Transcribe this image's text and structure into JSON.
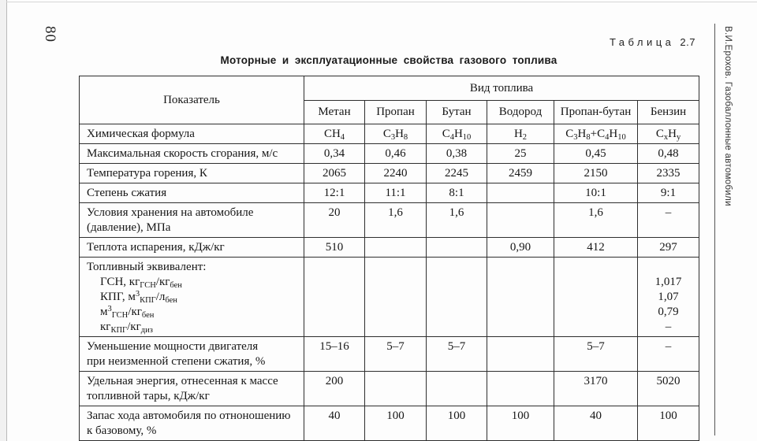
{
  "page": {
    "number": "80",
    "margin_title": "В.И.Ерохов. Газобаллонные автомобили",
    "table_ref": {
      "word": "Таблица",
      "number": "2.7"
    },
    "title": "Моторные и эксплуатационные свойства газового топлива"
  },
  "table": {
    "header": {
      "indicator": "Показатель",
      "group": "Вид топлива",
      "fuels": [
        "Метан",
        "Пропан",
        "Бутан",
        "Водород",
        "Пропан-бутан",
        "Бензин"
      ]
    },
    "rows": [
      {
        "label": [
          "Химическая формула"
        ],
        "values": [
          "CH~4~",
          "C~3~H~8~",
          "C~4~H~10~",
          "H~2~",
          "C~3~H~8~+C~4~H~10~",
          "C~x~H~y~"
        ]
      },
      {
        "label": [
          "Максимальная скорость сгорания, м/с"
        ],
        "values": [
          "0,34",
          "0,46",
          "0,38",
          "25",
          "0,45",
          "0,48"
        ]
      },
      {
        "label": [
          "Температура горения, К"
        ],
        "values": [
          "2065",
          "2240",
          "2245",
          "2459",
          "2150",
          "2335"
        ]
      },
      {
        "label": [
          "Степень сжатия"
        ],
        "values": [
          "12:1",
          "11:1",
          "8:1",
          "",
          "10:1",
          "9:1"
        ]
      },
      {
        "label": [
          "Условия хранения на автомобиле",
          "(давление), МПа"
        ],
        "values": [
          "20",
          "1,6",
          "1,6",
          "",
          "1,6",
          "–"
        ]
      },
      {
        "label": [
          "Теплота испарения, кДж/кг"
        ],
        "values": [
          "510",
          "",
          "",
          "0,90",
          "412",
          "297"
        ]
      },
      {
        "label": [
          "Топливный эквивалент:",
          "  ГСН, кг~ГСН~/кг~бен~",
          "  КПГ, м^3^~КПГ~/л~бен~",
          "  м^3^~ГСН~/кг~бен~",
          "  кг~КПГ~/кг~диз~"
        ],
        "values": [
          "",
          "",
          "",
          "",
          "",
          [
            "",
            "1,017",
            "1,07",
            "0,79",
            "–"
          ]
        ]
      },
      {
        "label": [
          "Уменьшение мощности двигателя",
          "при неизменной степени сжатия, %"
        ],
        "values": [
          "15–16",
          "5–7",
          "5–7",
          "",
          "5–7",
          "–"
        ]
      },
      {
        "label": [
          "Удельная энергия, отнесенная к массе",
          "топливной тары, кДж/кг"
        ],
        "values": [
          "200",
          "",
          "",
          "",
          "3170",
          "5020"
        ]
      },
      {
        "label": [
          "Запас хода автомобиля по отноношению",
          "к базовому, %"
        ],
        "values": [
          "40",
          "100",
          "100",
          "100",
          "40",
          "100"
        ]
      }
    ]
  }
}
